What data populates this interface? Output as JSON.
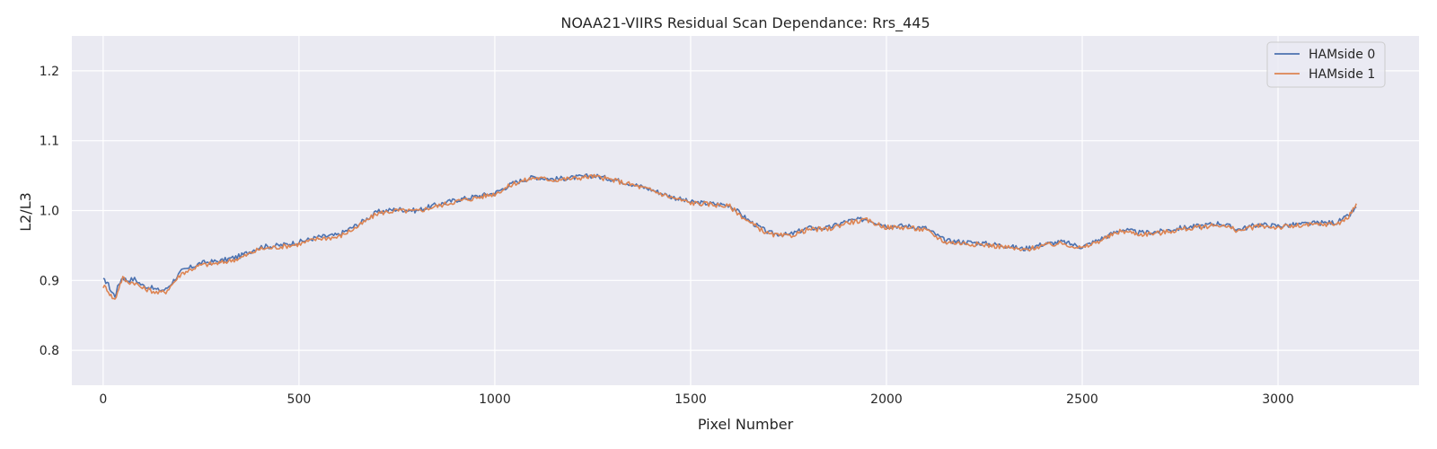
{
  "chart_data": {
    "type": "line",
    "title": "NOAA21-VIIRS Residual Scan Dependance: Rrs_445",
    "xlabel": "Pixel Number",
    "ylabel": "L2/L3",
    "xlim": [
      -80,
      3360
    ],
    "ylim": [
      0.75,
      1.25
    ],
    "xticks": [
      0,
      500,
      1000,
      1500,
      2000,
      2500,
      3000
    ],
    "xtick_labels": [
      "0",
      "500",
      "1000",
      "1500",
      "2000",
      "2500",
      "3000"
    ],
    "yticks": [
      0.8,
      0.9,
      1.0,
      1.1,
      1.2
    ],
    "ytick_labels": [
      "0.8",
      "0.9",
      "1.0",
      "1.1",
      "1.2"
    ],
    "grid": true,
    "legend_position": "top-right",
    "x": [
      0,
      10,
      20,
      30,
      40,
      50,
      60,
      80,
      100,
      120,
      140,
      160,
      180,
      200,
      250,
      300,
      350,
      400,
      450,
      500,
      550,
      600,
      650,
      700,
      750,
      800,
      850,
      900,
      950,
      1000,
      1050,
      1100,
      1150,
      1200,
      1250,
      1300,
      1350,
      1400,
      1450,
      1500,
      1550,
      1600,
      1650,
      1700,
      1750,
      1800,
      1850,
      1900,
      1950,
      2000,
      2050,
      2100,
      2150,
      2200,
      2250,
      2300,
      2350,
      2400,
      2450,
      2500,
      2550,
      2600,
      2650,
      2700,
      2750,
      2800,
      2850,
      2900,
      2950,
      3000,
      3050,
      3100,
      3150,
      3180,
      3200
    ],
    "series": [
      {
        "name": "HAMside 0",
        "color": "#4c72b0",
        "values": [
          0.9,
          0.898,
          0.885,
          0.878,
          0.895,
          0.905,
          0.9,
          0.902,
          0.893,
          0.89,
          0.886,
          0.887,
          0.9,
          0.913,
          0.925,
          0.928,
          0.935,
          0.948,
          0.95,
          0.955,
          0.962,
          0.965,
          0.98,
          0.998,
          1.002,
          1.0,
          1.008,
          1.015,
          1.02,
          1.025,
          1.04,
          1.048,
          1.045,
          1.047,
          1.05,
          1.045,
          1.038,
          1.03,
          1.02,
          1.012,
          1.01,
          1.008,
          0.985,
          0.968,
          0.965,
          0.975,
          0.975,
          0.985,
          0.988,
          0.978,
          0.978,
          0.975,
          0.957,
          0.955,
          0.953,
          0.95,
          0.945,
          0.952,
          0.955,
          0.948,
          0.96,
          0.973,
          0.968,
          0.97,
          0.975,
          0.978,
          0.982,
          0.973,
          0.98,
          0.978,
          0.98,
          0.982,
          0.983,
          0.992,
          1.005
        ]
      },
      {
        "name": "HAMside 1",
        "color": "#dd8452",
        "values": [
          0.892,
          0.888,
          0.878,
          0.872,
          0.89,
          0.904,
          0.898,
          0.897,
          0.889,
          0.886,
          0.882,
          0.884,
          0.897,
          0.91,
          0.922,
          0.925,
          0.932,
          0.945,
          0.948,
          0.952,
          0.96,
          0.962,
          0.977,
          0.996,
          1.0,
          0.999,
          1.006,
          1.013,
          1.018,
          1.024,
          1.039,
          1.047,
          1.044,
          1.046,
          1.049,
          1.044,
          1.037,
          1.029,
          1.019,
          1.011,
          1.009,
          1.006,
          0.983,
          0.966,
          0.963,
          0.973,
          0.973,
          0.983,
          0.986,
          0.976,
          0.976,
          0.972,
          0.955,
          0.953,
          0.951,
          0.948,
          0.943,
          0.95,
          0.953,
          0.946,
          0.958,
          0.971,
          0.966,
          0.968,
          0.973,
          0.976,
          0.98,
          0.971,
          0.978,
          0.976,
          0.978,
          0.98,
          0.981,
          0.99,
          1.01
        ]
      }
    ]
  }
}
